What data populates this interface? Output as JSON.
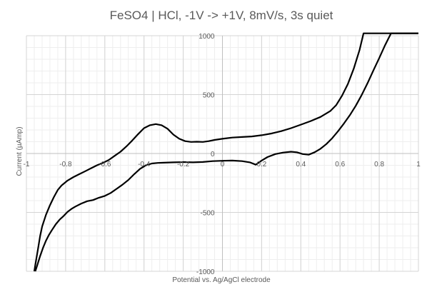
{
  "chart_data": {
    "type": "line",
    "title": "FeSO4 | HCl, -1V -> +1V, 8mV/s, 3s quiet",
    "xlabel": "Potential vs. Ag/AgCl electrode",
    "ylabel": "Current (µAmp)",
    "xlim": [
      -1,
      1
    ],
    "ylim": [
      -1000,
      1000
    ],
    "x_major_step": 0.2,
    "y_major_step": 500,
    "x_tick_labels": [
      "-1",
      "-0.8",
      "-0.6",
      "-0.4",
      "-0.2",
      "0",
      "0.2",
      "0.4",
      "0.6",
      "0.8",
      "1"
    ],
    "y_tick_labels": [
      "-1000",
      "-500",
      "0",
      "500",
      "1000"
    ],
    "grid": true,
    "minor_grid": true,
    "legend": "none",
    "color": "#000000",
    "series": [
      {
        "points": [
          [
            -0.955,
            -1000
          ],
          [
            -0.945,
            -950
          ],
          [
            -0.93,
            -870
          ],
          [
            -0.915,
            -800
          ],
          [
            -0.9,
            -740
          ],
          [
            -0.885,
            -690
          ],
          [
            -0.87,
            -650
          ],
          [
            -0.85,
            -600
          ],
          [
            -0.83,
            -560
          ],
          [
            -0.81,
            -530
          ],
          [
            -0.79,
            -495
          ],
          [
            -0.77,
            -470
          ],
          [
            -0.75,
            -450
          ],
          [
            -0.72,
            -425
          ],
          [
            -0.69,
            -405
          ],
          [
            -0.66,
            -395
          ],
          [
            -0.63,
            -375
          ],
          [
            -0.6,
            -360
          ],
          [
            -0.57,
            -335
          ],
          [
            -0.54,
            -300
          ],
          [
            -0.51,
            -265
          ],
          [
            -0.48,
            -225
          ],
          [
            -0.45,
            -175
          ],
          [
            -0.42,
            -130
          ],
          [
            -0.39,
            -100
          ],
          [
            -0.36,
            -85
          ],
          [
            -0.33,
            -80
          ],
          [
            -0.3,
            -78
          ],
          [
            -0.25,
            -75
          ],
          [
            -0.2,
            -73
          ],
          [
            -0.15,
            -75
          ],
          [
            -0.1,
            -72
          ],
          [
            -0.05,
            -65
          ],
          [
            0.0,
            -62
          ],
          [
            0.05,
            -60
          ],
          [
            0.1,
            -65
          ],
          [
            0.14,
            -75
          ],
          [
            0.17,
            -95
          ],
          [
            0.2,
            -60
          ],
          [
            0.23,
            -30
          ],
          [
            0.27,
            -5
          ],
          [
            0.31,
            8
          ],
          [
            0.35,
            15
          ],
          [
            0.38,
            10
          ],
          [
            0.41,
            -5
          ],
          [
            0.44,
            -10
          ],
          [
            0.47,
            10
          ],
          [
            0.5,
            40
          ],
          [
            0.53,
            80
          ],
          [
            0.56,
            130
          ],
          [
            0.59,
            190
          ],
          [
            0.62,
            255
          ],
          [
            0.65,
            325
          ],
          [
            0.68,
            405
          ],
          [
            0.71,
            495
          ],
          [
            0.74,
            595
          ],
          [
            0.77,
            705
          ],
          [
            0.8,
            810
          ],
          [
            0.83,
            920
          ],
          [
            0.86,
            1020
          ],
          [
            1.0,
            1020
          ]
        ]
      },
      {
        "points": [
          [
            -0.96,
            -1000
          ],
          [
            -0.95,
            -900
          ],
          [
            -0.94,
            -800
          ],
          [
            -0.93,
            -700
          ],
          [
            -0.92,
            -620
          ],
          [
            -0.9,
            -520
          ],
          [
            -0.88,
            -440
          ],
          [
            -0.86,
            -370
          ],
          [
            -0.84,
            -310
          ],
          [
            -0.82,
            -270
          ],
          [
            -0.79,
            -230
          ],
          [
            -0.76,
            -200
          ],
          [
            -0.73,
            -175
          ],
          [
            -0.7,
            -150
          ],
          [
            -0.67,
            -125
          ],
          [
            -0.64,
            -100
          ],
          [
            -0.61,
            -80
          ],
          [
            -0.58,
            -55
          ],
          [
            -0.55,
            -20
          ],
          [
            -0.52,
            15
          ],
          [
            -0.49,
            60
          ],
          [
            -0.46,
            110
          ],
          [
            -0.43,
            165
          ],
          [
            -0.4,
            215
          ],
          [
            -0.37,
            240
          ],
          [
            -0.34,
            250
          ],
          [
            -0.31,
            240
          ],
          [
            -0.28,
            210
          ],
          [
            -0.25,
            160
          ],
          [
            -0.22,
            125
          ],
          [
            -0.19,
            105
          ],
          [
            -0.16,
            98
          ],
          [
            -0.13,
            100
          ],
          [
            -0.1,
            98
          ],
          [
            -0.07,
            105
          ],
          [
            -0.04,
            115
          ],
          [
            0.0,
            125
          ],
          [
            0.05,
            135
          ],
          [
            0.1,
            140
          ],
          [
            0.15,
            145
          ],
          [
            0.2,
            155
          ],
          [
            0.25,
            170
          ],
          [
            0.3,
            190
          ],
          [
            0.35,
            215
          ],
          [
            0.4,
            245
          ],
          [
            0.45,
            275
          ],
          [
            0.5,
            310
          ],
          [
            0.55,
            360
          ],
          [
            0.58,
            410
          ],
          [
            0.61,
            490
          ],
          [
            0.64,
            590
          ],
          [
            0.67,
            720
          ],
          [
            0.7,
            880
          ],
          [
            0.72,
            1020
          ],
          [
            1.0,
            1020
          ]
        ]
      }
    ]
  }
}
